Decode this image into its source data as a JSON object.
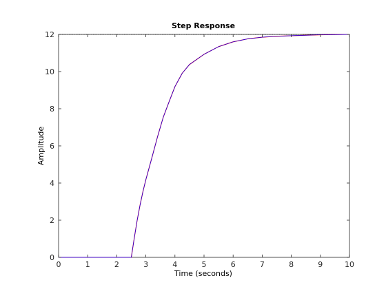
{
  "chart_data": {
    "type": "line",
    "title": "Step Response",
    "xlabel": "Time (seconds)",
    "ylabel": "Amplitude",
    "xlim": [
      0,
      10
    ],
    "ylim": [
      0,
      12
    ],
    "xticks": [
      "0",
      "1",
      "2",
      "3",
      "4",
      "5",
      "6",
      "7",
      "8",
      "9",
      "10"
    ],
    "yticks": [
      "0",
      "2",
      "4",
      "6",
      "8",
      "10",
      "12"
    ],
    "grid": false,
    "reference_line": {
      "y": 12,
      "style": "dotted",
      "color": "#000000"
    },
    "series": [
      {
        "color": "#ff0000",
        "x": [
          0,
          2.5,
          2.6,
          2.7,
          2.8,
          2.9,
          3.0,
          3.2,
          3.4,
          3.6,
          3.8,
          4.0,
          4.25,
          4.5,
          5.0,
          5.5,
          6.0,
          6.5,
          7.0,
          7.5,
          8.0,
          9.0,
          10.0
        ],
        "y": [
          0,
          0,
          1.02,
          1.98,
          2.81,
          3.54,
          4.18,
          5.32,
          6.48,
          7.55,
          8.38,
          9.19,
          9.91,
          10.38,
          10.93,
          11.34,
          11.6,
          11.76,
          11.85,
          11.9,
          11.93,
          11.98,
          12.0
        ]
      },
      {
        "color": "#0000ff",
        "x": [
          0,
          2.5,
          2.6,
          2.7,
          2.8,
          2.9,
          3.0,
          3.2,
          3.4,
          3.6,
          3.8,
          4.0,
          4.25,
          4.5,
          5.0,
          5.5,
          6.0,
          6.5,
          7.0,
          7.5,
          8.0,
          9.0,
          10.0
        ],
        "y": [
          0,
          0,
          1.02,
          1.98,
          2.81,
          3.54,
          4.18,
          5.32,
          6.48,
          7.55,
          8.38,
          9.19,
          9.91,
          10.38,
          10.93,
          11.34,
          11.6,
          11.76,
          11.85,
          11.9,
          11.93,
          11.98,
          12.0
        ]
      }
    ]
  }
}
